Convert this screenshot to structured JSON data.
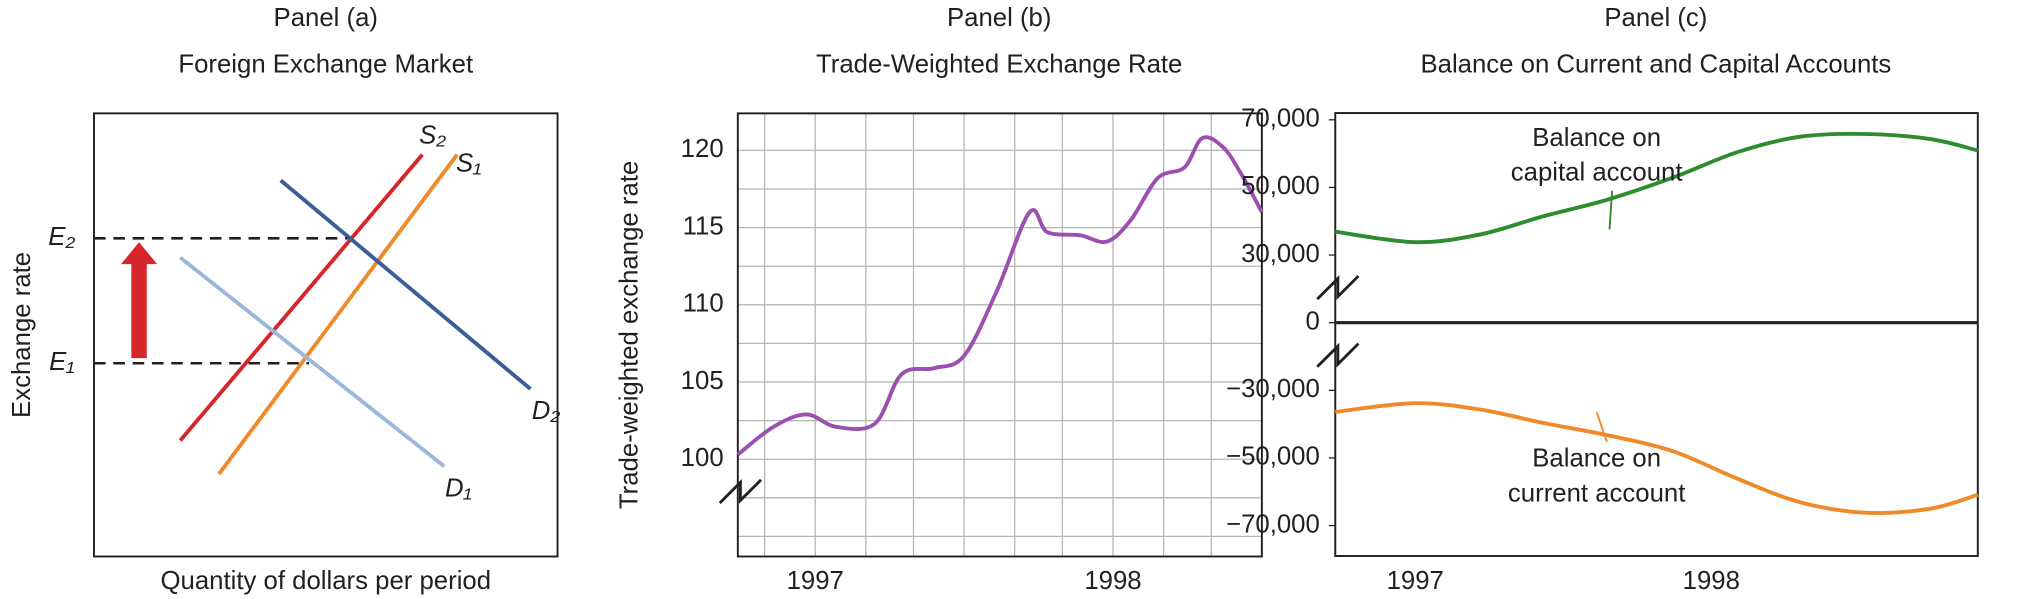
{
  "chart_data": [
    {
      "type": "supply-demand",
      "panel": "Panel (a)",
      "title": "Foreign Exchange Market",
      "xlabel": "Quantity of dollars per period",
      "ylabel": "Exchange rate",
      "curves": [
        {
          "name": "S₂",
          "color": "#d7262b"
        },
        {
          "name": "S₁",
          "color": "#f0892a"
        },
        {
          "name": "D₁",
          "color": "#9bb7dc"
        },
        {
          "name": "D₂",
          "color": "#3b5d9a"
        }
      ],
      "levels": [
        "E₂",
        "E₁"
      ],
      "arrow_color": "#d7262b"
    },
    {
      "type": "line",
      "panel": "Panel (b)",
      "title": "Trade-Weighted Exchange Rate",
      "ylabel": "Trade-weighted exchange rate",
      "x": [
        1996.74,
        1996.86,
        1996.97,
        1997.07,
        1997.2,
        1997.29,
        1997.4,
        1997.5,
        1997.61,
        1997.72,
        1997.78,
        1997.89,
        1997.98,
        1998.06,
        1998.15,
        1998.24,
        1998.3,
        1998.37,
        1998.43,
        1998.5
      ],
      "values": [
        100.3,
        102.1,
        102.9,
        102.1,
        102.3,
        105.5,
        105.9,
        106.7,
        110.9,
        116.0,
        114.7,
        114.5,
        114.1,
        115.5,
        118.2,
        118.9,
        120.8,
        120.2,
        118.5,
        116.0
      ],
      "color": "#9b4fae",
      "xlim": [
        1996.74,
        1998.5
      ],
      "xticks": [
        1997,
        1998
      ],
      "x_minor_ticks": [
        1996.83,
        1997.17,
        1997.33,
        1997.5,
        1997.67,
        1997.83,
        1998.17,
        1998.33
      ],
      "ylim": [
        93.7,
        122.4
      ],
      "yticks": [
        100,
        105,
        110,
        115,
        120
      ],
      "y_minor_ticks": [
        95,
        97.5,
        102.5,
        107.5,
        112.5,
        117.5
      ],
      "grid": true,
      "broken_axis": true
    },
    {
      "type": "broken-line",
      "panel": "Panel (c)",
      "title": "Balance on Current and Capital Accounts",
      "x": [
        1996.73,
        1997.0,
        1997.22,
        1997.43,
        1997.65,
        1997.87,
        1998.09,
        1998.3,
        1998.52,
        1998.74,
        1998.9
      ],
      "series": [
        {
          "color": "#2e8b2e",
          "values": [
            36900,
            33800,
            36100,
            41400,
            46400,
            52900,
            60500,
            65000,
            65800,
            64300,
            60900
          ]
        },
        {
          "color": "#f0892a",
          "values": [
            -36400,
            -33800,
            -35700,
            -39600,
            -43300,
            -48000,
            -56200,
            -63100,
            -66200,
            -65000,
            -60900
          ]
        }
      ],
      "annotations": [
        {
          "lines": [
            "Balance on",
            "capital account"
          ],
          "series": 0
        },
        {
          "lines": [
            "Balance on",
            "current account"
          ],
          "series": 1
        }
      ],
      "xlim": [
        1996.73,
        1998.9
      ],
      "xticks": [
        1997,
        1998
      ],
      "ylim": [
        -79000,
        72000
      ],
      "yticks": [
        {
          "value": 70000,
          "label": "70,000"
        },
        {
          "value": 50000,
          "label": "50,000"
        },
        {
          "value": 30000,
          "label": "30,000"
        },
        0,
        {
          "value": -30000,
          "label": "−30,000"
        },
        {
          "value": -50000,
          "label": "−50,000"
        },
        {
          "value": -70000,
          "label": "−70,000"
        }
      ],
      "broken_axis": true,
      "zero_line": true
    }
  ]
}
